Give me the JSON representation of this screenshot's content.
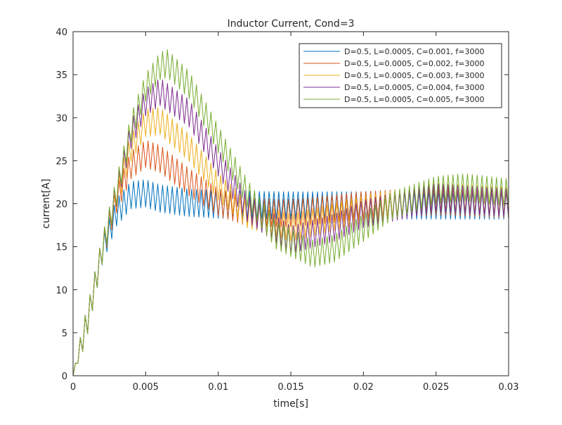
{
  "chart_data": {
    "type": "line",
    "title": "Inductor Current, Cond=3",
    "xlabel": "time[s]",
    "ylabel": "current[A]",
    "xlim": [
      0,
      0.03
    ],
    "ylim": [
      0,
      40
    ],
    "x_ticks": [
      0,
      0.005,
      0.01,
      0.015,
      0.02,
      0.025,
      0.03
    ],
    "x_tick_labels": [
      "0",
      "0.005",
      "0.01",
      "0.015",
      "0.02",
      "0.025",
      "0.03"
    ],
    "y_ticks": [
      0,
      5,
      10,
      15,
      20,
      25,
      30,
      35,
      40
    ],
    "y_tick_labels": [
      "0",
      "5",
      "10",
      "15",
      "20",
      "25",
      "30",
      "35",
      "40"
    ],
    "grid": false,
    "legend_position": "top-right",
    "series": [
      {
        "name": "D=0.5, L=0.0005, C=0.001, f=3000",
        "color": "#0072BD",
        "switching_frequency_hz": 3000,
        "ripple_peak_to_peak": 3.2,
        "envelope_mean": [
          [
            0,
            0
          ],
          [
            0.0005,
            3.3
          ],
          [
            0.001,
            6.5
          ],
          [
            0.0015,
            10.5
          ],
          [
            0.002,
            14.5
          ],
          [
            0.003,
            19
          ],
          [
            0.004,
            21
          ],
          [
            0.005,
            21.2
          ],
          [
            0.006,
            20.6
          ],
          [
            0.008,
            20.1
          ],
          [
            0.01,
            19.9
          ],
          [
            0.015,
            19.8
          ],
          [
            0.02,
            19.8
          ],
          [
            0.025,
            19.8
          ],
          [
            0.03,
            19.8
          ]
        ]
      },
      {
        "name": "D=0.5, L=0.0005, C=0.002, f=3000",
        "color": "#D95319",
        "switching_frequency_hz": 3000,
        "ripple_peak_to_peak": 3.2,
        "envelope_mean": [
          [
            0,
            0
          ],
          [
            0.0005,
            3.3
          ],
          [
            0.001,
            6.5
          ],
          [
            0.0015,
            10.5
          ],
          [
            0.002,
            14.6
          ],
          [
            0.003,
            20.5
          ],
          [
            0.004,
            24.5
          ],
          [
            0.005,
            25.8
          ],
          [
            0.006,
            25.2
          ],
          [
            0.008,
            22.5
          ],
          [
            0.01,
            20.2
          ],
          [
            0.012,
            19.0
          ],
          [
            0.015,
            18.9
          ],
          [
            0.02,
            19.8
          ],
          [
            0.025,
            20.3
          ],
          [
            0.03,
            20.0
          ]
        ]
      },
      {
        "name": "D=0.5, L=0.0005, C=0.003, f=3000",
        "color": "#EDB120",
        "switching_frequency_hz": 3000,
        "ripple_peak_to_peak": 3.2,
        "envelope_mean": [
          [
            0,
            0
          ],
          [
            0.0005,
            3.3
          ],
          [
            0.001,
            6.5
          ],
          [
            0.0015,
            10.5
          ],
          [
            0.002,
            14.6
          ],
          [
            0.003,
            21.0
          ],
          [
            0.004,
            26.5
          ],
          [
            0.005,
            29.4
          ],
          [
            0.006,
            29.6
          ],
          [
            0.008,
            26.5
          ],
          [
            0.01,
            22.0
          ],
          [
            0.012,
            18.8
          ],
          [
            0.015,
            17.2
          ],
          [
            0.02,
            19.3
          ],
          [
            0.025,
            20.8
          ],
          [
            0.03,
            20.3
          ]
        ]
      },
      {
        "name": "D=0.5, L=0.0005, C=0.004, f=3000",
        "color": "#7E2F8E",
        "switching_frequency_hz": 3000,
        "ripple_peak_to_peak": 3.2,
        "envelope_mean": [
          [
            0,
            0
          ],
          [
            0.0005,
            3.3
          ],
          [
            0.001,
            6.5
          ],
          [
            0.0015,
            10.5
          ],
          [
            0.002,
            14.6
          ],
          [
            0.003,
            21.3
          ],
          [
            0.004,
            28.0
          ],
          [
            0.005,
            31.8
          ],
          [
            0.006,
            33.0
          ],
          [
            0.008,
            30.5
          ],
          [
            0.01,
            24.8
          ],
          [
            0.012,
            19.5
          ],
          [
            0.015,
            15.8
          ],
          [
            0.018,
            17.2
          ],
          [
            0.02,
            18.8
          ],
          [
            0.025,
            20.7
          ],
          [
            0.03,
            20.1
          ]
        ]
      },
      {
        "name": "D=0.5, L=0.0005, C=0.005, f=3000",
        "color": "#77AC30",
        "switching_frequency_hz": 3000,
        "ripple_peak_to_peak": 3.2,
        "envelope_mean": [
          [
            0,
            0
          ],
          [
            0.0005,
            3.3
          ],
          [
            0.001,
            6.5
          ],
          [
            0.0015,
            10.5
          ],
          [
            0.002,
            14.6
          ],
          [
            0.003,
            21.5
          ],
          [
            0.004,
            28.8
          ],
          [
            0.005,
            33.5
          ],
          [
            0.006,
            36.0
          ],
          [
            0.0065,
            36.3
          ],
          [
            0.008,
            33.8
          ],
          [
            0.01,
            27.5
          ],
          [
            0.012,
            21.2
          ],
          [
            0.014,
            16.3
          ],
          [
            0.0165,
            14.2
          ],
          [
            0.018,
            14.8
          ],
          [
            0.02,
            17.2
          ],
          [
            0.022,
            19.8
          ],
          [
            0.025,
            21.6
          ],
          [
            0.027,
            21.9
          ],
          [
            0.03,
            21.3
          ]
        ]
      }
    ]
  }
}
